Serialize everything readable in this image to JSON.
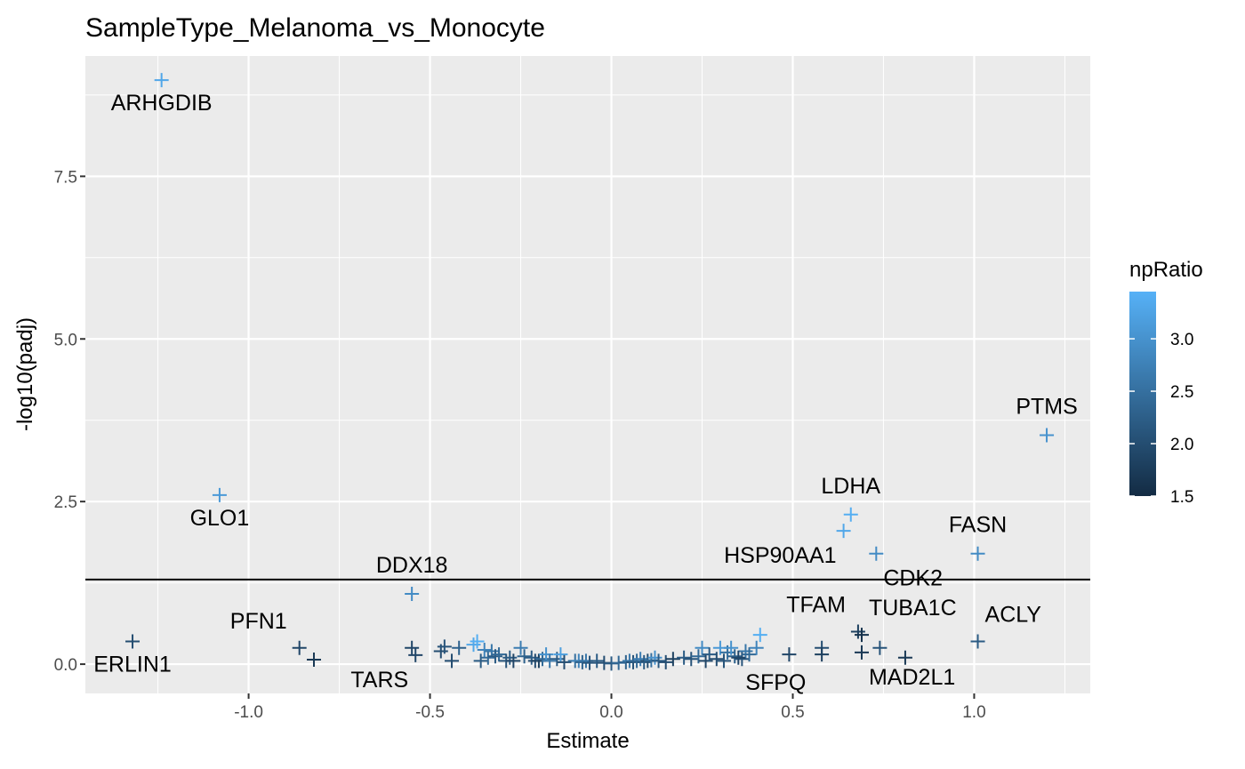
{
  "chart_data": {
    "type": "scatter",
    "title": "SampleType_Melanoma_vs_Monocyte",
    "xlabel": "Estimate",
    "ylabel": "-log10(padj)",
    "xlim": [
      -1.45,
      1.32
    ],
    "ylim": [
      -0.45,
      9.35
    ],
    "x_ticks": [
      -1.0,
      -0.5,
      0.0,
      0.5,
      1.0
    ],
    "x_tick_labels": [
      "-1.0",
      "-0.5",
      "0.0",
      "0.5",
      "1.0"
    ],
    "y_ticks": [
      0.0,
      2.5,
      5.0,
      7.5
    ],
    "y_tick_labels": [
      "0.0",
      "2.5",
      "5.0",
      "7.5"
    ],
    "hline": 1.30103,
    "marker": "plus",
    "grid": true,
    "background": "#ebebeb",
    "color_scale": {
      "name": "npRatio",
      "min": 1.5,
      "max": 3.45,
      "low_color": "#132b43",
      "high_color": "#56b1f7",
      "ticks": [
        1.5,
        2.0,
        2.5,
        3.0
      ],
      "tick_labels": [
        "1.5",
        "2.0",
        "2.5",
        "3.0"
      ]
    },
    "labeled_points": [
      {
        "gene": "ARHGDIB",
        "x": -1.24,
        "y": 8.98,
        "npRatio": 3.3,
        "anchor": "below"
      },
      {
        "gene": "GLO1",
        "x": -1.08,
        "y": 2.6,
        "npRatio": 3.1,
        "anchor": "below"
      },
      {
        "gene": "PTMS",
        "x": 1.2,
        "y": 3.52,
        "npRatio": 3.0,
        "anchor": "above"
      },
      {
        "gene": "LDHA",
        "x": 0.66,
        "y": 2.3,
        "npRatio": 3.4,
        "anchor": "above"
      },
      {
        "gene": "HSP90AA1",
        "x": 0.64,
        "y": 2.05,
        "npRatio": 3.3,
        "anchor": "belowleft"
      },
      {
        "gene": "CDK2",
        "x": 0.73,
        "y": 1.7,
        "npRatio": 2.9,
        "anchor": "belowright"
      },
      {
        "gene": "FASN",
        "x": 1.01,
        "y": 1.7,
        "npRatio": 2.9,
        "anchor": "above"
      },
      {
        "gene": "DDX18",
        "x": -0.55,
        "y": 1.08,
        "npRatio": 2.9,
        "anchor": "above"
      },
      {
        "gene": "TFAM",
        "x": 0.68,
        "y": 0.5,
        "npRatio": 1.8,
        "anchor": "aboveleft"
      },
      {
        "gene": "TUBA1C",
        "x": 0.69,
        "y": 0.45,
        "npRatio": 1.6,
        "anchor": "aboveright"
      },
      {
        "gene": "ACLY",
        "x": 1.01,
        "y": 0.35,
        "npRatio": 2.2,
        "anchor": "aboveright"
      },
      {
        "gene": "PFN1",
        "x": -0.86,
        "y": 0.25,
        "npRatio": 1.9,
        "anchor": "aboveleft"
      },
      {
        "gene": "ERLIN1",
        "x": -1.32,
        "y": 0.35,
        "npRatio": 2.0,
        "anchor": "below"
      },
      {
        "gene": "TARS",
        "x": -0.54,
        "y": 0.14,
        "npRatio": 1.9,
        "anchor": "belowleft"
      },
      {
        "gene": "SFPQ",
        "x": 0.35,
        "y": 0.1,
        "npRatio": 1.9,
        "anchor": "belowright"
      },
      {
        "gene": "MAD2L1",
        "x": 0.69,
        "y": 0.18,
        "npRatio": 1.7,
        "anchor": "belowright"
      }
    ],
    "other_points": [
      [
        -0.82,
        0.07,
        1.7
      ],
      [
        -0.55,
        0.25,
        1.9
      ],
      [
        -0.47,
        0.2,
        2.0
      ],
      [
        -0.46,
        0.27,
        2.1
      ],
      [
        -0.44,
        0.05,
        2.0
      ],
      [
        -0.42,
        0.25,
        2.3
      ],
      [
        -0.38,
        0.3,
        3.3
      ],
      [
        -0.37,
        0.35,
        3.4
      ],
      [
        -0.36,
        0.05,
        2.2
      ],
      [
        -0.35,
        0.22,
        2.8
      ],
      [
        -0.34,
        0.1,
        2.4
      ],
      [
        -0.33,
        0.2,
        2.6
      ],
      [
        -0.32,
        0.12,
        2.2
      ],
      [
        -0.31,
        0.15,
        2.4
      ],
      [
        -0.29,
        0.05,
        2.1
      ],
      [
        -0.28,
        0.1,
        2.2
      ],
      [
        -0.27,
        0.05,
        1.9
      ],
      [
        -0.25,
        0.25,
        2.7
      ],
      [
        -0.24,
        0.12,
        2.3
      ],
      [
        -0.22,
        0.1,
        2.2
      ],
      [
        -0.21,
        0.05,
        2.0
      ],
      [
        -0.2,
        0.05,
        1.8
      ],
      [
        -0.19,
        0.08,
        2.4
      ],
      [
        -0.18,
        0.15,
        3.0
      ],
      [
        -0.17,
        0.05,
        2.6
      ],
      [
        -0.15,
        0.08,
        2.2
      ],
      [
        -0.14,
        0.15,
        3.2
      ],
      [
        -0.13,
        0.03,
        2.0
      ],
      [
        -0.1,
        0.05,
        2.5
      ],
      [
        -0.09,
        0.05,
        2.8
      ],
      [
        -0.08,
        0.03,
        2.3
      ],
      [
        -0.07,
        0.05,
        2.6
      ],
      [
        -0.06,
        0.02,
        2.1
      ],
      [
        -0.04,
        0.05,
        2.2
      ],
      [
        -0.02,
        0.02,
        2.0
      ],
      [
        0.0,
        0.01,
        2.2
      ],
      [
        0.02,
        0.02,
        2.4
      ],
      [
        0.04,
        0.03,
        2.3
      ],
      [
        0.05,
        0.05,
        2.6
      ],
      [
        0.06,
        0.03,
        2.1
      ],
      [
        0.07,
        0.05,
        2.4
      ],
      [
        0.08,
        0.08,
        2.7
      ],
      [
        0.09,
        0.03,
        2.2
      ],
      [
        0.1,
        0.05,
        2.0
      ],
      [
        0.11,
        0.06,
        2.5
      ],
      [
        0.12,
        0.1,
        3.0
      ],
      [
        0.13,
        0.05,
        2.2
      ],
      [
        0.15,
        0.03,
        2.0
      ],
      [
        0.17,
        0.08,
        1.8
      ],
      [
        0.2,
        0.1,
        2.2
      ],
      [
        0.22,
        0.08,
        2.1
      ],
      [
        0.24,
        0.12,
        2.4
      ],
      [
        0.25,
        0.25,
        2.9
      ],
      [
        0.26,
        0.05,
        1.9
      ],
      [
        0.27,
        0.15,
        2.2
      ],
      [
        0.29,
        0.08,
        2.0
      ],
      [
        0.3,
        0.25,
        3.1
      ],
      [
        0.31,
        0.05,
        2.1
      ],
      [
        0.32,
        0.18,
        2.5
      ],
      [
        0.33,
        0.25,
        3.0
      ],
      [
        0.34,
        0.12,
        2.3
      ],
      [
        0.36,
        0.08,
        2.1
      ],
      [
        0.37,
        0.2,
        2.6
      ],
      [
        0.38,
        0.15,
        2.4
      ],
      [
        0.4,
        0.25,
        2.8
      ],
      [
        0.41,
        0.45,
        3.4
      ],
      [
        0.49,
        0.15,
        1.9
      ],
      [
        0.58,
        0.25,
        2.0
      ],
      [
        0.58,
        0.15,
        1.8
      ],
      [
        0.74,
        0.25,
        2.1
      ],
      [
        0.81,
        0.1,
        1.7
      ]
    ]
  }
}
